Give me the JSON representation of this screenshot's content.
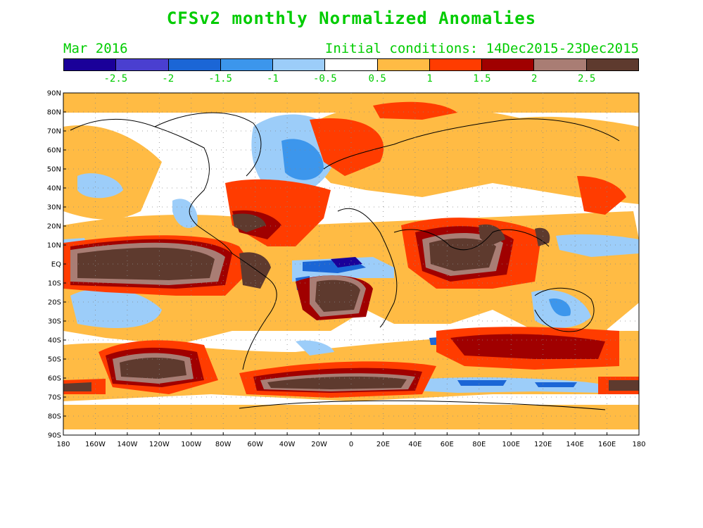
{
  "title": "CFSv2 monthly Normalized Anomalies",
  "valid_month": "Mar 2016",
  "initial_conditions": "Initial conditions: 14Dec2015-23Dec2015",
  "colorbar": {
    "colors": [
      "#1a0099",
      "#4a3fd0",
      "#1b66d6",
      "#3c96ec",
      "#9ccdf9",
      "#ffffff",
      "#ffbb44",
      "#ff3c00",
      "#a00000",
      "#a97d74",
      "#5e3a2e"
    ],
    "labels": [
      "-2.5",
      "-2",
      "-1.5",
      "-1",
      "-0.5",
      "0.5",
      "1",
      "1.5",
      "2",
      "2.5"
    ]
  },
  "lat_labels": [
    "90N",
    "80N",
    "70N",
    "60N",
    "50N",
    "40N",
    "30N",
    "20N",
    "10N",
    "EQ",
    "10S",
    "20S",
    "30S",
    "40S",
    "50S",
    "60S",
    "70S",
    "80S",
    "90S"
  ],
  "lon_labels": [
    "180",
    "160W",
    "140W",
    "120W",
    "100W",
    "80W",
    "60W",
    "40W",
    "20W",
    "0",
    "20E",
    "40E",
    "60E",
    "80E",
    "100E",
    "120E",
    "140E",
    "160E",
    "180"
  ]
}
